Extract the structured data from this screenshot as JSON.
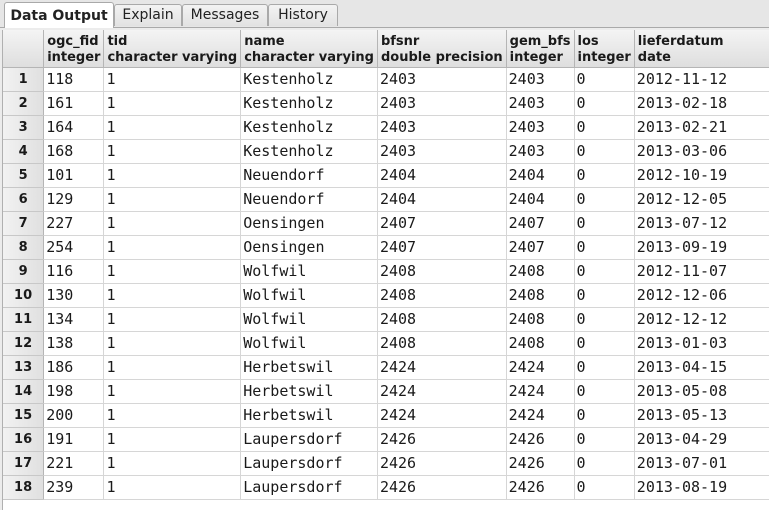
{
  "tabs": [
    "Data Output",
    "Explain",
    "Messages",
    "History"
  ],
  "columns": [
    {
      "name": "ogc_fid",
      "type": "integer"
    },
    {
      "name": "tid",
      "type": "character varying"
    },
    {
      "name": "name",
      "type": "character varying"
    },
    {
      "name": "bfsnr",
      "type": "double precision"
    },
    {
      "name": "gem_bfs",
      "type": "integer"
    },
    {
      "name": "los",
      "type": "integer"
    },
    {
      "name": "lieferdatum",
      "type": "date"
    }
  ],
  "rows": [
    [
      "1",
      "118",
      "1",
      "Kestenholz",
      "2403",
      "2403",
      "0",
      "2012-11-12"
    ],
    [
      "2",
      "161",
      "1",
      "Kestenholz",
      "2403",
      "2403",
      "0",
      "2013-02-18"
    ],
    [
      "3",
      "164",
      "1",
      "Kestenholz",
      "2403",
      "2403",
      "0",
      "2013-02-21"
    ],
    [
      "4",
      "168",
      "1",
      "Kestenholz",
      "2403",
      "2403",
      "0",
      "2013-03-06"
    ],
    [
      "5",
      "101",
      "1",
      "Neuendorf",
      "2404",
      "2404",
      "0",
      "2012-10-19"
    ],
    [
      "6",
      "129",
      "1",
      "Neuendorf",
      "2404",
      "2404",
      "0",
      "2012-12-05"
    ],
    [
      "7",
      "227",
      "1",
      "Oensingen",
      "2407",
      "2407",
      "0",
      "2013-07-12"
    ],
    [
      "8",
      "254",
      "1",
      "Oensingen",
      "2407",
      "2407",
      "0",
      "2013-09-19"
    ],
    [
      "9",
      "116",
      "1",
      "Wolfwil",
      "2408",
      "2408",
      "0",
      "2012-11-07"
    ],
    [
      "10",
      "130",
      "1",
      "Wolfwil",
      "2408",
      "2408",
      "0",
      "2012-12-06"
    ],
    [
      "11",
      "134",
      "1",
      "Wolfwil",
      "2408",
      "2408",
      "0",
      "2012-12-12"
    ],
    [
      "12",
      "138",
      "1",
      "Wolfwil",
      "2408",
      "2408",
      "0",
      "2013-01-03"
    ],
    [
      "13",
      "186",
      "1",
      "Herbetswil",
      "2424",
      "2424",
      "0",
      "2013-04-15"
    ],
    [
      "14",
      "198",
      "1",
      "Herbetswil",
      "2424",
      "2424",
      "0",
      "2013-05-08"
    ],
    [
      "15",
      "200",
      "1",
      "Herbetswil",
      "2424",
      "2424",
      "0",
      "2013-05-13"
    ],
    [
      "16",
      "191",
      "1",
      "Laupersdorf",
      "2426",
      "2426",
      "0",
      "2013-04-29"
    ],
    [
      "17",
      "221",
      "1",
      "Laupersdorf",
      "2426",
      "2426",
      "0",
      "2013-07-01"
    ],
    [
      "18",
      "239",
      "1",
      "Laupersdorf",
      "2426",
      "2426",
      "0",
      "2013-08-19"
    ]
  ]
}
